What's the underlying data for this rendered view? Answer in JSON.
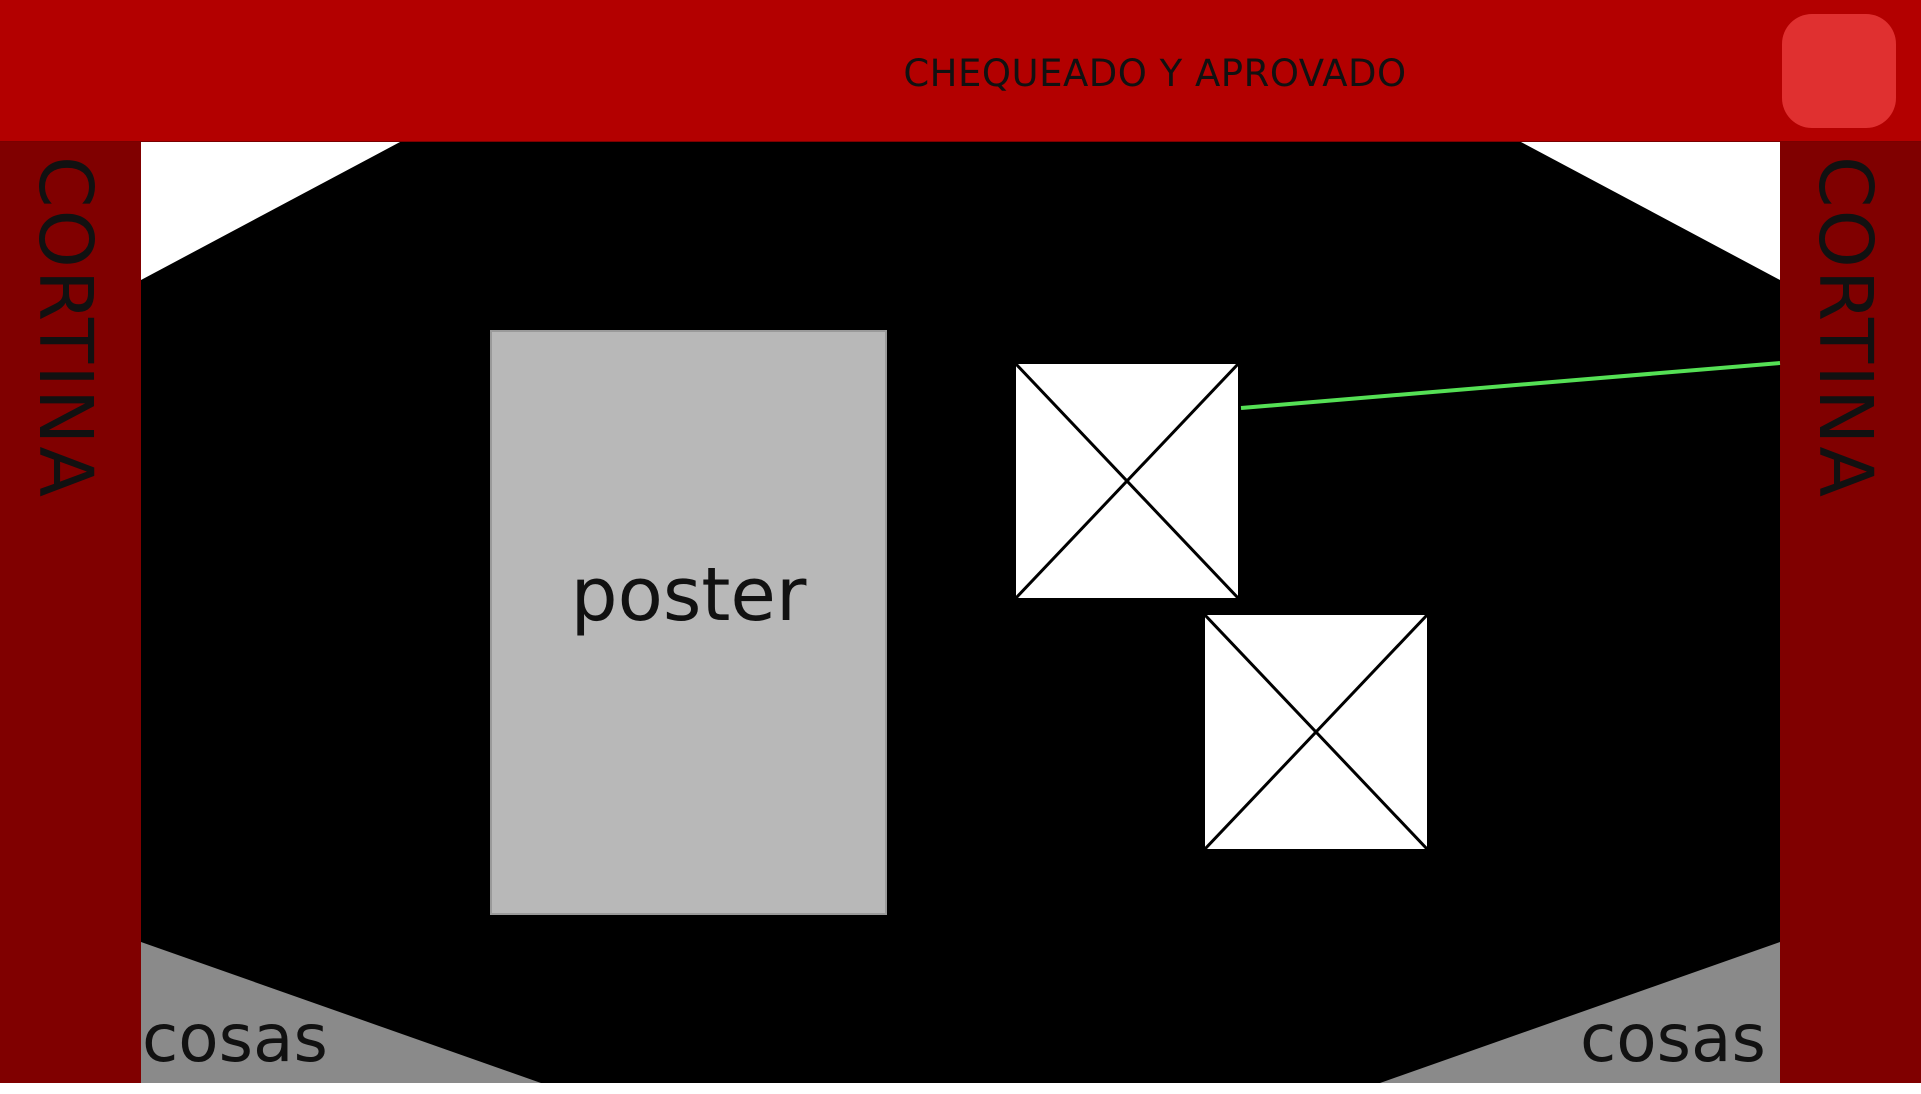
{
  "colors": {
    "banner": "#b30000",
    "banner_button": "#e03030",
    "curtain": "#800000",
    "curtain_top": "#7a0000",
    "stage": "#000000",
    "poster": "#b8b8b8",
    "floor_corner": "#8a8a8a",
    "placeholder_fill": "#ffffff",
    "line": "#55e055"
  },
  "banner": {
    "title": "CHEQUEADO Y APROVADO"
  },
  "curtains": {
    "left_label": "CORTINA",
    "right_label": "CORTINA"
  },
  "poster": {
    "label": "poster"
  },
  "placeholders": [
    {
      "icon": "image-placeholder-icon"
    },
    {
      "icon": "image-placeholder-icon"
    }
  ],
  "floor": {
    "left_label": "cosas",
    "right_label": "cosas"
  }
}
